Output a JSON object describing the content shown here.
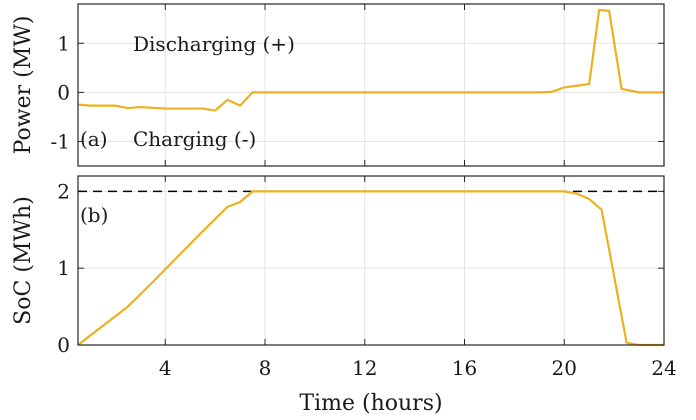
{
  "chart_data": [
    {
      "type": "line",
      "panel_label": "(a)",
      "ylabel": "Power (MW)",
      "xlim": [
        0.5,
        24
      ],
      "ylim": [
        -1.5,
        1.8
      ],
      "yticks": [
        -1,
        0,
        1
      ],
      "yticklabels": [
        "-1",
        "0",
        "1"
      ],
      "xticks": [
        4,
        8,
        12,
        16,
        20,
        24
      ],
      "grid": true,
      "annotations": [
        "Discharging (+)",
        "Charging (-)"
      ],
      "color": "#edb120",
      "x": [
        0.5,
        1,
        2,
        2.5,
        3,
        4,
        5,
        5.5,
        6,
        6.5,
        7,
        7.5,
        8,
        10,
        12,
        14,
        16,
        18,
        19,
        19.5,
        20,
        21,
        21.4,
        21.8,
        22.3,
        23,
        24
      ],
      "y": [
        -0.25,
        -0.27,
        -0.27,
        -0.32,
        -0.3,
        -0.33,
        -0.33,
        -0.33,
        -0.37,
        -0.15,
        -0.27,
        0,
        0,
        0,
        0,
        0,
        0,
        0,
        0,
        0.01,
        0.1,
        0.17,
        1.68,
        1.66,
        0.07,
        0,
        0
      ]
    },
    {
      "type": "line",
      "panel_label": "(b)",
      "ylabel": "SoC (MWh)",
      "xlabel": "Time (hours)",
      "xlim": [
        0.5,
        24
      ],
      "ylim": [
        0,
        2.2
      ],
      "yticks": [
        0,
        1,
        2
      ],
      "yticklabels": [
        "0",
        "1",
        "2"
      ],
      "xticks": [
        4,
        8,
        12,
        16,
        20,
        24
      ],
      "xticklabels": [
        "4",
        "8",
        "12",
        "16",
        "20",
        "24"
      ],
      "grid": true,
      "reference_line": {
        "y": 2,
        "style": "dashed",
        "color": "#000000"
      },
      "color": "#edb120",
      "x": [
        0.5,
        1.5,
        2.5,
        3.5,
        4.5,
        5.5,
        6.5,
        7,
        7.5,
        20,
        20.5,
        21,
        21.5,
        22.5,
        23,
        24
      ],
      "y": [
        0,
        0.25,
        0.5,
        0.82,
        1.15,
        1.48,
        1.8,
        1.86,
        2,
        2,
        1.97,
        1.9,
        1.76,
        0.03,
        0,
        0
      ]
    }
  ]
}
